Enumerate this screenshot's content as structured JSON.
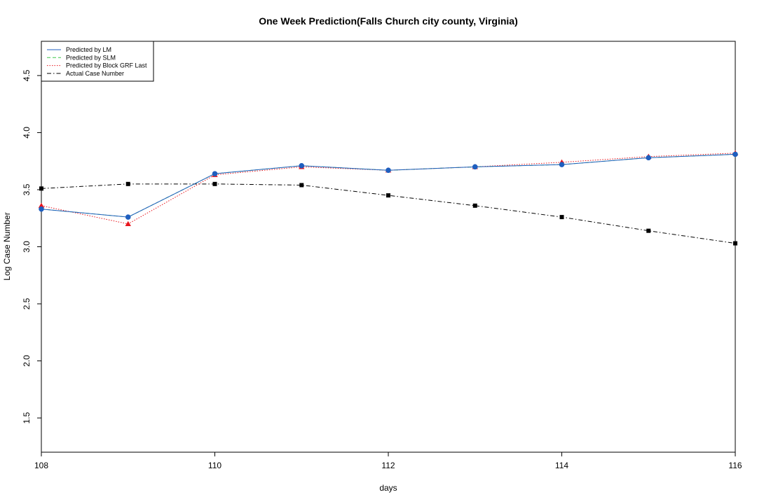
{
  "chart_data": {
    "type": "line",
    "title": "One Week Prediction(Falls Church city county, Virginia)",
    "xlabel": "days",
    "ylabel": "Log Case Number",
    "xlim": [
      108,
      116
    ],
    "ylim": [
      1.2,
      4.8
    ],
    "xticks": [
      108,
      110,
      112,
      114,
      116
    ],
    "yticks": [
      1.5,
      2.0,
      2.5,
      3.0,
      3.5,
      4.0,
      4.5
    ],
    "xtick_labels": [
      "108",
      "110",
      "112",
      "114",
      "116"
    ],
    "ytick_labels": [
      "1.5",
      "2.0",
      "2.5",
      "3.0",
      "3.5",
      "4.0",
      "4.5"
    ],
    "x": [
      108,
      109,
      110,
      111,
      112,
      113,
      114,
      115,
      116
    ],
    "legend_position": "top-left",
    "grid": false,
    "series": [
      {
        "name": "Predicted by LM",
        "color": "#1f5fbf",
        "dash": "solid",
        "marker": "circle",
        "values": [
          3.33,
          3.26,
          3.64,
          3.71,
          3.67,
          3.7,
          3.72,
          3.78,
          3.81
        ]
      },
      {
        "name": "Predicted by SLM",
        "color": "#3cc84a",
        "dash": "dashed",
        "marker": "circle",
        "values": [
          3.33,
          3.26,
          3.64,
          3.71,
          3.67,
          3.7,
          3.72,
          3.78,
          3.81
        ]
      },
      {
        "name": "Predicted by Block GRF Last",
        "color": "#e8141c",
        "dash": "dotted",
        "marker": "triangle",
        "values": [
          3.36,
          3.2,
          3.63,
          3.7,
          3.67,
          3.7,
          3.74,
          3.79,
          3.82
        ]
      },
      {
        "name": "Actual Case Number",
        "color": "#000000",
        "dash": "dashdot",
        "marker": "square",
        "values": [
          3.51,
          3.55,
          3.55,
          3.54,
          3.45,
          3.36,
          3.26,
          3.14,
          3.03
        ]
      }
    ]
  }
}
